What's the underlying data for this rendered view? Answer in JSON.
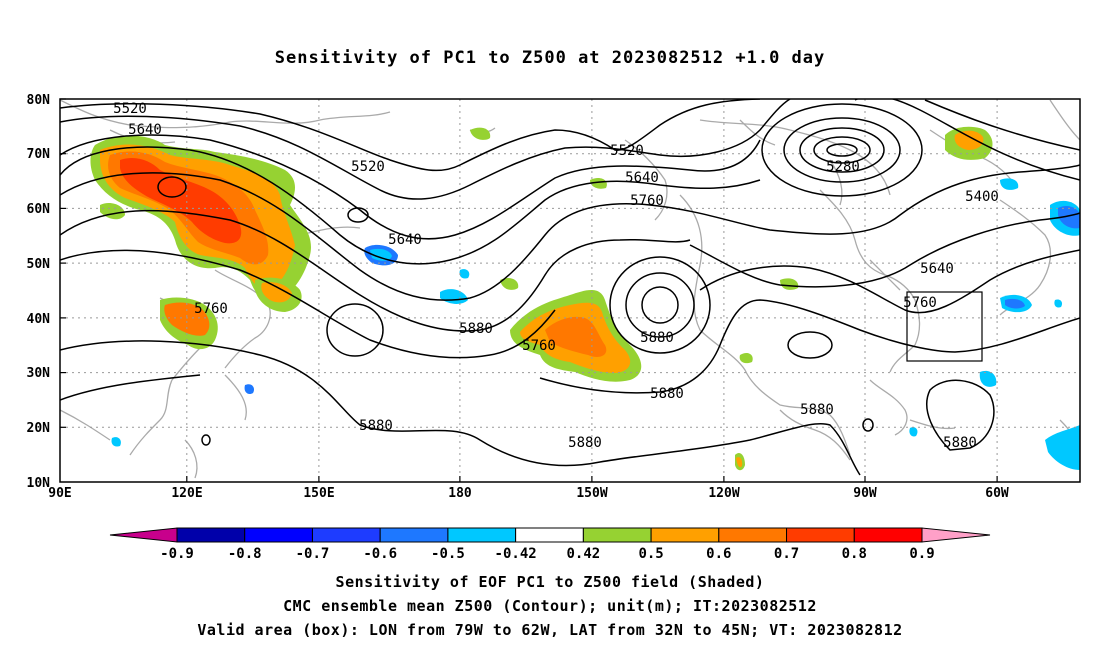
{
  "title": "Sensitivity of PC1 to Z500 at 2023082512 +1.0 day",
  "lat_labels": [
    "80N",
    "70N",
    "60N",
    "50N",
    "40N",
    "30N",
    "20N",
    "10N"
  ],
  "lon_labels": [
    "90E",
    "120E",
    "150E",
    "180",
    "150W",
    "120W",
    "90W",
    "60W"
  ],
  "contour_labels": [
    "5520",
    "5640",
    "5520",
    "5640",
    "5520",
    "5640",
    "5760",
    "5280",
    "5400",
    "5640",
    "5760",
    "5760",
    "5880",
    "5760",
    "5880",
    "5880",
    "5880",
    "5880",
    "5880",
    "5880"
  ],
  "colorbar": {
    "labels": [
      "-0.9",
      "-0.8",
      "-0.7",
      "-0.6",
      "-0.5",
      "-0.42",
      "0.42",
      "0.5",
      "0.6",
      "0.7",
      "0.8",
      "0.9"
    ],
    "colors": [
      "#c8008c",
      "#0000aa",
      "#0000ff",
      "#1e3cff",
      "#1e78ff",
      "#00c8ff",
      "#ffffff",
      "#96d232",
      "#ffa000",
      "#ff7800",
      "#ff3c00",
      "#ff0000",
      "#ffa0c8"
    ]
  },
  "captions": {
    "line1": "Sensitivity of EOF PC1 to Z500 field (Shaded)",
    "line2": "CMC ensemble mean Z500 (Contour); unit(m); IT:2023082512",
    "line3": "Valid area (box): LON from 79W to 62W, LAT from 32N to 45N; VT: 2023082812"
  }
}
